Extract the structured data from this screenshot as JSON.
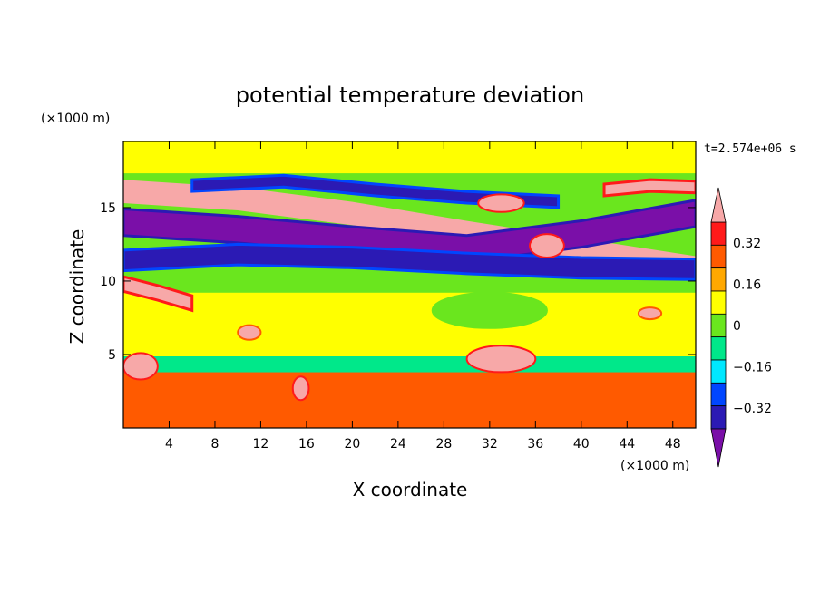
{
  "chart_data": {
    "type": "heatmap",
    "title": "potential temperature deviation",
    "xlabel": "X coordinate",
    "ylabel": "Z coordinate",
    "x_unit_label": "(×1000 m)",
    "y_unit_label": "(×1000 m)",
    "time_label": "t=2.574e+06 s",
    "xlim": [
      0,
      50
    ],
    "ylim": [
      0,
      19.5
    ],
    "x_ticks": [
      4,
      8,
      12,
      16,
      20,
      24,
      28,
      32,
      36,
      40,
      44,
      48
    ],
    "y_ticks": [
      5,
      10,
      15
    ],
    "colorbar": {
      "levels": [
        -0.4,
        -0.32,
        -0.24,
        -0.16,
        -0.08,
        0,
        0.08,
        0.16,
        0.24,
        0.32,
        0.4
      ],
      "tick_labels": [
        "0.32",
        "0.16",
        "0",
        "−0.16",
        "−0.32"
      ],
      "tick_values": [
        0.32,
        0.16,
        0,
        -0.16,
        -0.32
      ],
      "colors": [
        "#7a0fa8",
        "#2b1ab4",
        "#0046ff",
        "#00e8ff",
        "#00e88a",
        "#6ae61e",
        "#ffff00",
        "#ffa800",
        "#ff5a00",
        "#ff1a1a",
        "#f7a8a8"
      ],
      "extend": "both"
    },
    "features": [
      {
        "kind": "band",
        "value": 0.48,
        "center": [
          [
            0,
            16.1
          ],
          [
            10,
            15.6
          ],
          [
            20,
            14.6
          ],
          [
            30,
            13.3
          ],
          [
            40,
            12.1
          ],
          [
            50,
            10.9
          ]
        ],
        "half_width": 0.7
      },
      {
        "kind": "band",
        "value": -0.48,
        "center": [
          [
            0,
            14.0
          ],
          [
            10,
            13.5
          ],
          [
            20,
            12.8
          ],
          [
            30,
            12.2
          ],
          [
            40,
            13.2
          ],
          [
            50,
            14.6
          ]
        ],
        "half_width": 0.9
      },
      {
        "kind": "band",
        "value": -0.36,
        "center": [
          [
            0,
            11.4
          ],
          [
            10,
            11.8
          ],
          [
            20,
            11.6
          ],
          [
            30,
            11.2
          ],
          [
            40,
            10.9
          ],
          [
            50,
            10.8
          ]
        ],
        "half_width": 0.7
      },
      {
        "kind": "band",
        "value": -0.4,
        "center": [
          [
            6,
            16.5
          ],
          [
            14,
            16.8
          ],
          [
            22,
            16.2
          ],
          [
            30,
            15.7
          ],
          [
            38,
            15.4
          ]
        ],
        "half_width": 0.4
      },
      {
        "kind": "band",
        "value": 0.44,
        "center": [
          [
            0,
            9.8
          ],
          [
            3,
            9.2
          ],
          [
            6,
            8.5
          ]
        ],
        "half_width": 0.5
      },
      {
        "kind": "band",
        "value": 0.44,
        "center": [
          [
            42,
            16.2
          ],
          [
            46,
            16.5
          ],
          [
            50,
            16.4
          ]
        ],
        "half_width": 0.4
      },
      {
        "kind": "blob",
        "value": 0.48,
        "x": 33,
        "y": 15.3,
        "rx": 2,
        "ry": 0.6
      },
      {
        "kind": "blob",
        "value": 0.48,
        "x": 37,
        "y": 12.4,
        "rx": 1.5,
        "ry": 0.8
      },
      {
        "kind": "blob",
        "value": -0.08,
        "x": 32,
        "y": 8,
        "rx": 5,
        "ry": 1.2
      },
      {
        "kind": "blob",
        "value": 0.48,
        "x": 1.5,
        "y": 4.2,
        "rx": 1.5,
        "ry": 0.9
      },
      {
        "kind": "blob",
        "value": 0.48,
        "x": 33,
        "y": 4.7,
        "rx": 3,
        "ry": 0.9
      },
      {
        "kind": "blob",
        "value": 0.44,
        "x": 15.5,
        "y": 2.7,
        "rx": 0.7,
        "ry": 0.8
      },
      {
        "kind": "blob",
        "value": 0.36,
        "x": 11,
        "y": 6.5,
        "rx": 1,
        "ry": 0.5
      },
      {
        "kind": "blob",
        "value": 0.36,
        "x": 46,
        "y": 7.8,
        "rx": 1,
        "ry": 0.4
      }
    ]
  }
}
